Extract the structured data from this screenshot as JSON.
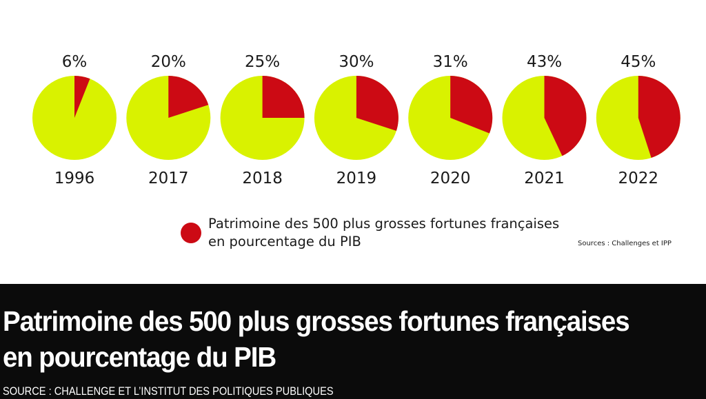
{
  "chart_data": {
    "type": "pie",
    "categories": [
      "1996",
      "2017",
      "2018",
      "2019",
      "2020",
      "2021",
      "2022"
    ],
    "values": [
      6,
      20,
      25,
      30,
      31,
      43,
      45
    ],
    "value_labels": [
      "6%",
      "20%",
      "25%",
      "30%",
      "31%",
      "43%",
      "45%"
    ],
    "unit": "%",
    "series": [
      {
        "name": "Patrimoine des 500 plus grosses fortunes françaises en pourcentage du PIB",
        "color": "#cc0a14"
      }
    ],
    "remainder_color": "#d9f200",
    "legend": {
      "text": "Patrimoine des 500 plus grosses fortunes françaises en pourcentage du PIB",
      "placement": "bottom-center"
    },
    "source_note": "Sources : Challenges et IPP"
  },
  "caption": {
    "title": "Patrimoine des 500 plus grosses fortunes françaises en pourcentage du PIB",
    "source": "SOURCE : CHALLENGE ET L’INSTITUT DES POLITIQUES PUBLIQUES"
  }
}
